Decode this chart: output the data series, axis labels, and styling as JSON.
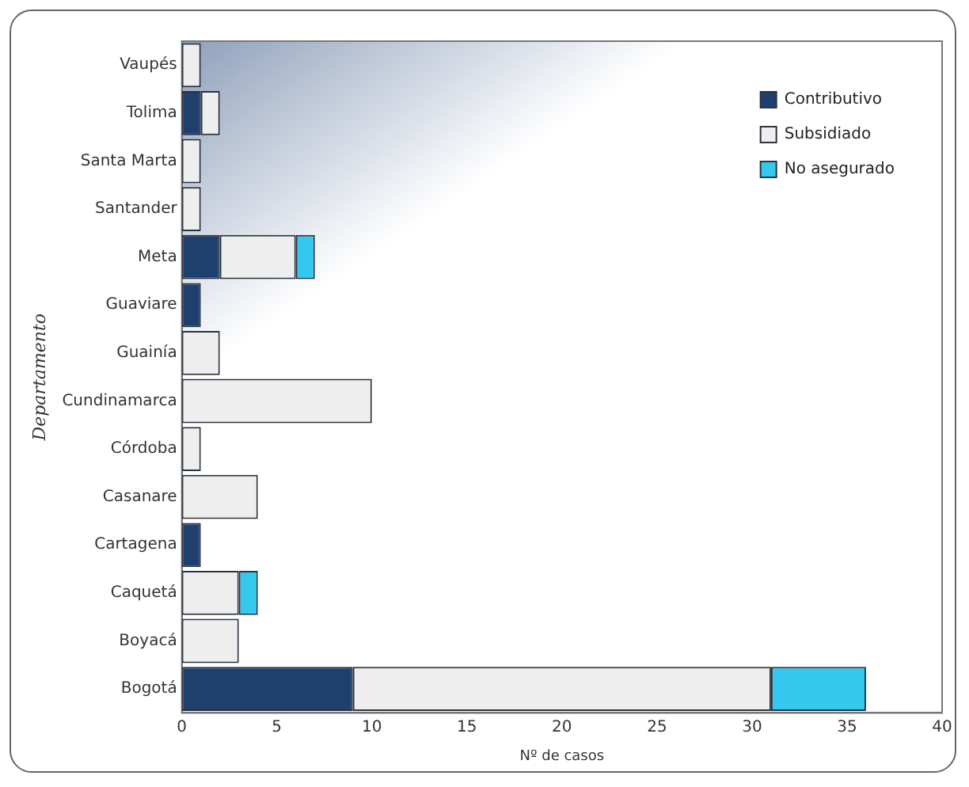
{
  "chart_data": {
    "type": "bar",
    "orientation": "horizontal",
    "stacked": true,
    "xlabel": "Nº de casos",
    "ylabel": "Departamento",
    "categories": [
      "Vaupés",
      "Tolima",
      "Santa Marta",
      "Santander",
      "Meta",
      "Guaviare",
      "Guainía",
      "Cundinamarca",
      "Córdoba",
      "Casanare",
      "Cartagena",
      "Caquetá",
      "Boyacá",
      "Bogotá"
    ],
    "series": [
      {
        "name": "Contributivo",
        "color": "#1f3f6e",
        "values": [
          null,
          1,
          null,
          null,
          2,
          1,
          null,
          null,
          null,
          null,
          1,
          null,
          null,
          9
        ]
      },
      {
        "name": "Subsidiado",
        "color": "#eeeeee",
        "values": [
          1,
          1,
          1,
          1,
          4,
          null,
          2,
          10,
          1,
          4,
          null,
          3,
          3,
          22
        ]
      },
      {
        "name": "No asegurado",
        "color": "#35c8ef",
        "values": [
          null,
          null,
          null,
          null,
          1,
          null,
          null,
          null,
          null,
          null,
          null,
          1,
          null,
          5
        ]
      }
    ],
    "xlim": [
      0,
      40
    ],
    "xticks": [
      0,
      5,
      10,
      15,
      20,
      25,
      30,
      35,
      40
    ],
    "grid": false,
    "legend": "top right"
  }
}
